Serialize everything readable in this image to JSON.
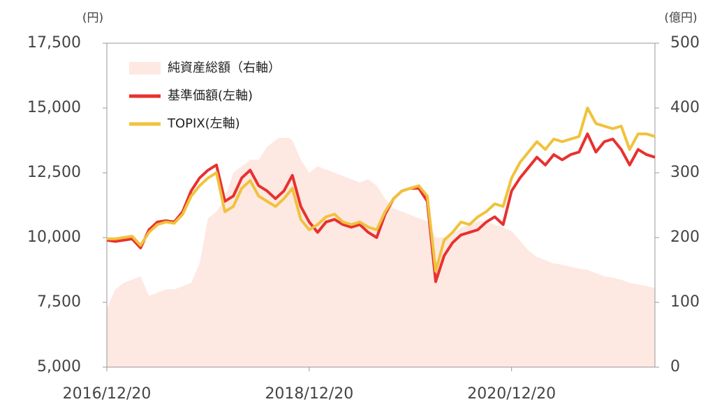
{
  "chart_data": {
    "type": "line",
    "y_label": "(円)",
    "y2_label": "(億円)",
    "categories": [
      "2016/12/20",
      null,
      null,
      null,
      null,
      null,
      null,
      null,
      null,
      null,
      null,
      null,
      null,
      null,
      null,
      null,
      null,
      null,
      null,
      null,
      null,
      null,
      null,
      null,
      "2018/12/20",
      null,
      null,
      null,
      null,
      null,
      null,
      null,
      null,
      null,
      null,
      null,
      null,
      null,
      null,
      null,
      null,
      null,
      null,
      null,
      null,
      null,
      null,
      null,
      "2020/12/20",
      null,
      null,
      null,
      null,
      null,
      null,
      null,
      null,
      null,
      null,
      null,
      null,
      null,
      null,
      null,
      null,
      null
    ],
    "series": [
      {
        "name": "純資産総額（右軸）",
        "color": "#fde8e2",
        "axis": "y2",
        "style": "area",
        "values": [
          90,
          120,
          130,
          135,
          140,
          110,
          115,
          120,
          120,
          125,
          130,
          160,
          230,
          240,
          260,
          300,
          310,
          320,
          320,
          340,
          350,
          360,
          350,
          320,
          300,
          310,
          305,
          300,
          295,
          290,
          285,
          290,
          280,
          260,
          245,
          240,
          235,
          230,
          225,
          200,
          200,
          205,
          215,
          220,
          225,
          225,
          220,
          215,
          210,
          195,
          180,
          170,
          165,
          160,
          158,
          155,
          152,
          150,
          145,
          140,
          138,
          135,
          130,
          128,
          125,
          122
        ]
      },
      {
        "name": "基準価額(左軸)",
        "color": "#e8312f",
        "values": [
          9900,
          9850,
          9900,
          9950,
          9600,
          10300,
          10600,
          10650,
          10600,
          11000,
          11800,
          12300,
          12600,
          12800,
          11400,
          11600,
          12300,
          12600,
          12000,
          11800,
          11500,
          11800,
          12400,
          11200,
          10600,
          10200,
          10600,
          10700,
          10500,
          10400,
          10500,
          10200,
          10000,
          10900,
          11500,
          11800,
          11900,
          11900,
          11400,
          8300,
          9300,
          9800,
          10100,
          10200,
          10300,
          10600,
          10800,
          10500,
          11800,
          12300,
          12700,
          13100,
          12800,
          13200,
          13000,
          13200,
          13300,
          14000,
          13300,
          13700,
          13800,
          13400,
          12800,
          13400,
          13200,
          13100
        ]
      },
      {
        "name": "TOPIX(左軸)",
        "color": "#f0c23c",
        "values": [
          9950,
          9950,
          10000,
          10050,
          9700,
          10200,
          10500,
          10600,
          10550,
          10900,
          11600,
          12000,
          12300,
          12500,
          11000,
          11200,
          11900,
          12200,
          11600,
          11400,
          11200,
          11500,
          11900,
          10700,
          10300,
          10500,
          10800,
          10900,
          10600,
          10500,
          10600,
          10400,
          10300,
          11000,
          11500,
          11800,
          11900,
          12000,
          11600,
          8700,
          9900,
          10200,
          10600,
          10500,
          10800,
          11000,
          11300,
          11200,
          12300,
          12900,
          13300,
          13700,
          13400,
          13800,
          13700,
          13800,
          13900,
          15000,
          14400,
          14300,
          14200,
          14300,
          13400,
          14000,
          14000,
          13900
        ]
      }
    ],
    "ylim": [
      5000,
      17500
    ],
    "yticks": [
      {
        "value": 5000,
        "label": "5,000"
      },
      {
        "value": 7500,
        "label": "7,500"
      },
      {
        "value": 10000,
        "label": "10,000"
      },
      {
        "value": 12500,
        "label": "12,500"
      },
      {
        "value": 15000,
        "label": "15,000"
      },
      {
        "value": 17500,
        "label": "17,500"
      }
    ],
    "y2lim": [
      0,
      500
    ],
    "y2ticks": [
      0,
      100,
      200,
      300,
      400,
      500
    ],
    "legend": "upper-left"
  }
}
